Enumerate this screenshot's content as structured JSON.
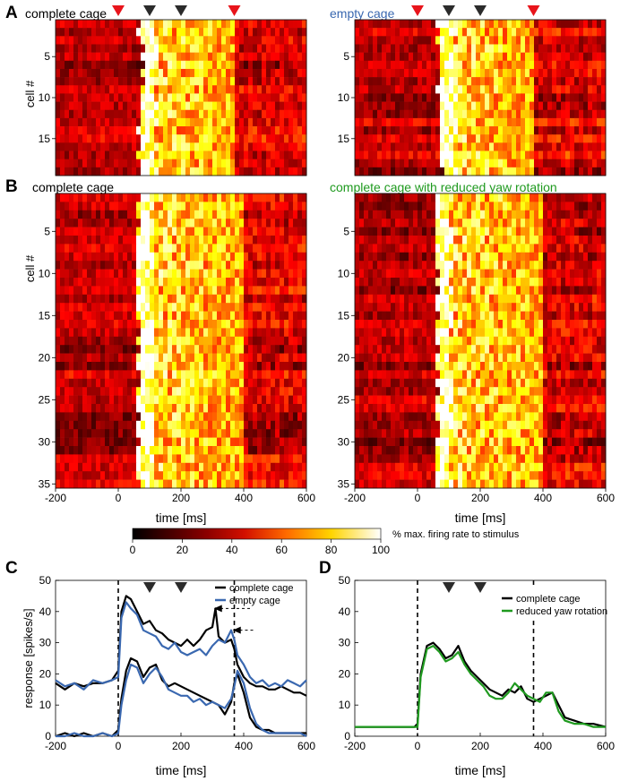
{
  "panel_letters": {
    "a": "A",
    "b": "B",
    "c": "C",
    "d": "D"
  },
  "colors": {
    "red_marker": "#e8141b",
    "black_marker": "#2b2b2b",
    "empty_cage_blue": "#3a68b0",
    "reduced_yaw_green": "#1f9a1f",
    "complete_black": "#000000"
  },
  "marker_times_ms": {
    "red": [
      0,
      370
    ],
    "black": [
      100,
      200
    ]
  },
  "heatmap_colorbar": {
    "label": "% max. firing rate to stimulus",
    "ticks": [
      0,
      20,
      40,
      60,
      80,
      100
    ],
    "colormap": "hot"
  },
  "chart_data": [
    {
      "panel": "A",
      "type": "heatmap",
      "title": "complete cage",
      "ylabel": "cell #",
      "xlabel": "",
      "xlim": [
        -200,
        600
      ],
      "rows": 19,
      "yticks": [
        5,
        10,
        15
      ],
      "xticks": [],
      "response_window_ms": [
        70,
        370
      ],
      "markers": [
        "red@0",
        "black@100",
        "black@200",
        "red@370"
      ]
    },
    {
      "panel": "A",
      "type": "heatmap",
      "title": "empty cage",
      "ylabel": "",
      "xlabel": "",
      "xlim": [
        -200,
        600
      ],
      "rows": 19,
      "yticks": [
        5,
        10,
        15
      ],
      "xticks": [],
      "response_window_ms": [
        70,
        370
      ],
      "markers": [
        "red@0",
        "black@100",
        "black@200",
        "red@370"
      ]
    },
    {
      "panel": "B",
      "type": "heatmap",
      "title": "complete cage",
      "ylabel": "cell #",
      "xlabel": "time [ms]",
      "xlim": [
        -200,
        600
      ],
      "rows": 35,
      "yticks": [
        5,
        10,
        15,
        20,
        25,
        30,
        35
      ],
      "xticks": [
        -200,
        0,
        200,
        400,
        600
      ],
      "response_window_ms": [
        60,
        400
      ]
    },
    {
      "panel": "B",
      "type": "heatmap",
      "title": "complete cage with reduced yaw rotation",
      "ylabel": "",
      "xlabel": "time [ms]",
      "xlim": [
        -200,
        600
      ],
      "rows": 35,
      "yticks": [
        5,
        10,
        15,
        20,
        25,
        30,
        35
      ],
      "xticks": [
        -200,
        0,
        200,
        400,
        600
      ],
      "response_window_ms": [
        60,
        400
      ]
    },
    {
      "panel": "C",
      "type": "line",
      "xlabel": "time [ms]",
      "ylabel": "response [spikes/s]",
      "xlim": [
        -200,
        600
      ],
      "ylim": [
        0,
        50
      ],
      "xticks": [
        -200,
        0,
        200,
        400,
        600
      ],
      "yticks": [
        0,
        10,
        20,
        30,
        40,
        50
      ],
      "vlines_ms": [
        0,
        370
      ],
      "legend_position": "top-right",
      "series": [
        {
          "name": "complete cage",
          "color": "#000000",
          "x": [
            -200,
            -170,
            -140,
            -110,
            -80,
            -50,
            -20,
            0,
            10,
            25,
            40,
            60,
            80,
            100,
            120,
            140,
            160,
            180,
            200,
            220,
            240,
            260,
            280,
            300,
            310,
            320,
            340,
            360,
            370,
            380,
            400,
            420,
            440,
            460,
            480,
            500,
            520,
            540,
            560,
            580,
            600
          ],
          "y": [
            17,
            15,
            17,
            16,
            17,
            17,
            18,
            21,
            40,
            45,
            44,
            40,
            36,
            37,
            34,
            33,
            31,
            30,
            29,
            31,
            29,
            31,
            34,
            35,
            41,
            32,
            30,
            31,
            28,
            23,
            19,
            17,
            16,
            16,
            15,
            15,
            16,
            15,
            14,
            14,
            13
          ]
        },
        {
          "name": "empty cage",
          "color": "#3a68b0",
          "x": [
            -200,
            -170,
            -140,
            -110,
            -80,
            -50,
            -20,
            0,
            10,
            25,
            40,
            60,
            80,
            100,
            120,
            140,
            160,
            180,
            200,
            220,
            240,
            260,
            280,
            300,
            320,
            340,
            360,
            370,
            380,
            400,
            420,
            440,
            460,
            480,
            500,
            520,
            540,
            560,
            580,
            600
          ],
          "y": [
            18,
            16,
            17,
            15,
            18,
            17,
            18,
            19,
            38,
            43,
            41,
            39,
            34,
            33,
            32,
            29,
            28,
            30,
            27,
            26,
            27,
            28,
            26,
            29,
            31,
            30,
            34,
            31,
            26,
            23,
            19,
            17,
            18,
            16,
            17,
            16,
            18,
            17,
            16,
            18
          ]
        },
        {
          "name": "",
          "color": "#000000",
          "x": [
            -200,
            -170,
            -140,
            -110,
            -80,
            -50,
            -20,
            0,
            10,
            25,
            40,
            60,
            80,
            100,
            120,
            140,
            160,
            180,
            200,
            220,
            240,
            260,
            280,
            300,
            320,
            340,
            360,
            370,
            380,
            400,
            420,
            440,
            460,
            480,
            500,
            520,
            540,
            560,
            580,
            600
          ],
          "y": [
            0,
            1,
            0,
            1,
            0,
            1,
            0,
            2,
            12,
            21,
            25,
            24,
            19,
            22,
            23,
            18,
            16,
            17,
            16,
            15,
            14,
            13,
            12,
            11,
            10,
            7,
            11,
            17,
            20,
            14,
            6,
            3,
            2,
            2,
            1,
            1,
            1,
            1,
            1,
            1
          ]
        },
        {
          "name": "",
          "color": "#3a68b0",
          "x": [
            -200,
            -170,
            -140,
            -110,
            -80,
            -50,
            -20,
            0,
            10,
            25,
            40,
            60,
            80,
            100,
            120,
            140,
            160,
            180,
            200,
            220,
            240,
            260,
            280,
            300,
            320,
            340,
            360,
            370,
            380,
            400,
            420,
            440,
            460,
            480,
            500,
            520,
            540,
            560,
            580,
            600
          ],
          "y": [
            0,
            0,
            1,
            0,
            0,
            1,
            0,
            1,
            10,
            18,
            23,
            22,
            17,
            20,
            22,
            19,
            15,
            14,
            13,
            13,
            11,
            12,
            10,
            11,
            10,
            9,
            12,
            16,
            21,
            17,
            9,
            4,
            2,
            1,
            1,
            1,
            1,
            1,
            1,
            0
          ]
        }
      ],
      "annotations": [
        "arrow->complete cage peak@300ms",
        "arrow->empty cage peak@360ms"
      ],
      "markers": [
        "black@100",
        "black@200"
      ]
    },
    {
      "panel": "D",
      "type": "line",
      "xlabel": "time [ms]",
      "ylabel": "",
      "xlim": [
        -200,
        600
      ],
      "ylim": [
        0,
        50
      ],
      "xticks": [
        -200,
        0,
        200,
        400,
        600
      ],
      "yticks": [
        0,
        10,
        20,
        30,
        40,
        50
      ],
      "vlines_ms": [
        0,
        370
      ],
      "legend_position": "right",
      "series": [
        {
          "name": "complete cage",
          "color": "#000000",
          "x": [
            -200,
            -160,
            -120,
            -80,
            -40,
            -10,
            0,
            10,
            30,
            50,
            70,
            90,
            110,
            130,
            150,
            170,
            190,
            210,
            230,
            250,
            270,
            290,
            310,
            330,
            350,
            370,
            390,
            410,
            430,
            450,
            470,
            500,
            530,
            560,
            600
          ],
          "y": [
            3,
            3,
            3,
            3,
            3,
            3,
            4,
            20,
            29,
            30,
            28,
            25,
            26,
            29,
            24,
            21,
            19,
            17,
            15,
            14,
            13,
            15,
            14,
            16,
            12,
            11,
            12,
            13,
            14,
            10,
            6,
            5,
            4,
            4,
            3
          ]
        },
        {
          "name": "reduced yaw rotation",
          "color": "#1f9a1f",
          "x": [
            -200,
            -160,
            -120,
            -80,
            -40,
            -10,
            0,
            10,
            30,
            50,
            70,
            90,
            110,
            130,
            150,
            170,
            190,
            210,
            230,
            250,
            270,
            290,
            310,
            330,
            350,
            370,
            390,
            410,
            430,
            450,
            470,
            500,
            530,
            560,
            600
          ],
          "y": [
            3,
            3,
            3,
            3,
            3,
            3,
            3,
            19,
            28,
            29,
            27,
            24,
            25,
            27,
            23,
            20,
            18,
            16,
            13,
            12,
            12,
            14,
            17,
            15,
            13,
            12,
            11,
            14,
            14,
            8,
            5,
            4,
            4,
            3,
            3
          ]
        }
      ],
      "markers": [
        "black@100",
        "black@200"
      ]
    }
  ]
}
